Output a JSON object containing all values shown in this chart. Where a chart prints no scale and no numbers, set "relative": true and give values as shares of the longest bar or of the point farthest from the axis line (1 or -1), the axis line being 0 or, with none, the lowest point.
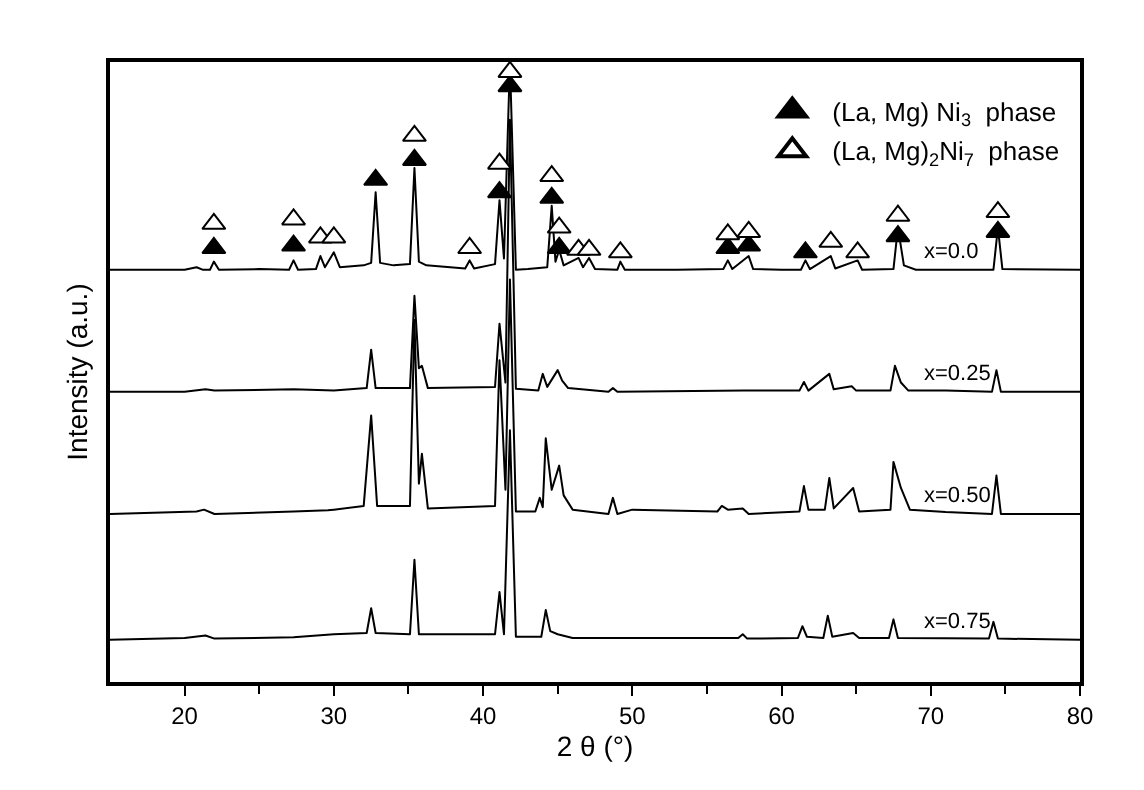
{
  "chart_data": {
    "type": "line",
    "relative": true,
    "xlabel": "2 θ (°)",
    "ylabel": "Intensity (a.u.)",
    "xlim": [
      15,
      80
    ],
    "xticks": [
      20,
      {
        "value": 25,
        "label": null
      },
      30,
      {
        "value": 35,
        "label": null
      },
      40,
      {
        "value": 45,
        "label": null
      },
      50,
      {
        "value": 55,
        "label": null
      },
      60,
      {
        "value": 65,
        "label": null
      },
      70,
      {
        "value": 75,
        "label": null
      },
      80
    ],
    "legend": "top right",
    "marker": "none",
    "line_style": "solid",
    "series": [
      {
        "name": "x=0.0",
        "color": "#000000",
        "x": [
          15,
          20,
          20.8,
          21.2,
          21.7,
          21.96,
          22.3,
          25,
          27.0,
          27.3,
          27.6,
          28.8,
          29.1,
          29.4,
          30.0,
          30.4,
          32.0,
          32.5,
          32.8,
          33.1,
          34.0,
          35.1,
          35.4,
          35.7,
          36.2,
          38.8,
          39.1,
          39.4,
          40.8,
          41.1,
          41.4,
          41.8,
          42.2,
          43,
          44.3,
          44.6,
          44.85,
          45.1,
          45.4,
          46.4,
          46.7,
          47.1,
          47.5,
          49.0,
          49.2,
          49.5,
          53,
          56.1,
          56.4,
          56.7,
          57.8,
          58.1,
          60,
          61.3,
          61.6,
          61.9,
          63.3,
          63.6,
          65.1,
          65.4,
          67.5,
          67.8,
          68.2,
          69,
          74.2,
          74.5,
          74.8,
          80
        ],
        "values": [
          0.665,
          0.665,
          0.669,
          0.665,
          0.665,
          0.678,
          0.665,
          0.666,
          0.665,
          0.68,
          0.665,
          0.666,
          0.687,
          0.669,
          0.693,
          0.669,
          0.672,
          0.676,
          0.79,
          0.676,
          0.672,
          0.674,
          0.829,
          0.678,
          0.672,
          0.667,
          0.68,
          0.667,
          0.674,
          0.777,
          0.683,
          1.0,
          0.665,
          0.666,
          0.669,
          0.768,
          0.678,
          0.697,
          0.672,
          0.684,
          0.669,
          0.684,
          0.666,
          0.665,
          0.678,
          0.665,
          0.665,
          0.666,
          0.68,
          0.666,
          0.687,
          0.666,
          0.665,
          0.665,
          0.68,
          0.666,
          0.687,
          0.667,
          0.68,
          0.665,
          0.666,
          0.733,
          0.672,
          0.665,
          0.665,
          0.733,
          0.666,
          0.665
        ]
      },
      {
        "name": "x=0.25",
        "color": "#000000",
        "x": [
          15,
          20,
          21.4,
          22,
          27.3,
          30,
          32.2,
          32.5,
          32.8,
          35.1,
          35.4,
          35.7,
          35.9,
          36.3,
          40.8,
          41.1,
          41.5,
          41.8,
          42.2,
          43.7,
          44.0,
          44.3,
          45.0,
          45.3,
          45.7,
          48.4,
          48.7,
          49.0,
          57.5,
          61.2,
          61.5,
          61.8,
          63.2,
          63.5,
          64.7,
          65.0,
          67.3,
          67.6,
          68.0,
          68.5,
          71,
          74.1,
          74.4,
          74.7,
          80
        ],
        "values": [
          0.468,
          0.468,
          0.472,
          0.47,
          0.472,
          0.47,
          0.474,
          0.536,
          0.474,
          0.474,
          0.623,
          0.506,
          0.51,
          0.474,
          0.476,
          0.578,
          0.483,
          0.907,
          0.473,
          0.47,
          0.497,
          0.476,
          0.503,
          0.486,
          0.474,
          0.468,
          0.474,
          0.468,
          0.47,
          0.47,
          0.484,
          0.47,
          0.497,
          0.472,
          0.477,
          0.47,
          0.47,
          0.51,
          0.483,
          0.47,
          0.47,
          0.468,
          0.503,
          0.468,
          0.468
        ]
      },
      {
        "name": "x=0.50",
        "color": "#000000",
        "x": [
          15,
          20.8,
          21.3,
          22,
          27.3,
          29.6,
          30,
          32.0,
          32.5,
          32.9,
          35.1,
          35.4,
          35.7,
          35.9,
          36.3,
          40.8,
          41.1,
          41.5,
          41.8,
          42.2,
          43.5,
          43.8,
          44.0,
          44.2,
          44.6,
          45.1,
          45.4,
          46,
          48.4,
          48.7,
          49,
          50,
          55.7,
          56.0,
          56.4,
          57.4,
          57.8,
          61.2,
          61.5,
          61.8,
          62.9,
          63.2,
          63.5,
          64.8,
          65.2,
          67.3,
          67.5,
          68.0,
          68.6,
          71,
          74.1,
          74.4,
          74.7,
          80
        ],
        "values": [
          0.271,
          0.275,
          0.278,
          0.271,
          0.275,
          0.277,
          0.278,
          0.284,
          0.43,
          0.284,
          0.284,
          0.584,
          0.32,
          0.368,
          0.28,
          0.284,
          0.519,
          0.31,
          0.649,
          0.275,
          0.275,
          0.297,
          0.282,
          0.393,
          0.31,
          0.349,
          0.301,
          0.278,
          0.271,
          0.297,
          0.271,
          0.278,
          0.275,
          0.284,
          0.278,
          0.28,
          0.271,
          0.275,
          0.316,
          0.278,
          0.278,
          0.329,
          0.28,
          0.313,
          0.275,
          0.278,
          0.355,
          0.313,
          0.278,
          0.274,
          0.271,
          0.333,
          0.271,
          0.271
        ]
      },
      {
        "name": "x=0.75",
        "color": "#000000",
        "x": [
          15,
          20,
          21.4,
          22,
          27.3,
          30,
          32.2,
          32.5,
          32.8,
          35.1,
          35.4,
          35.7,
          40.8,
          41.1,
          41.4,
          41.8,
          42.2,
          43.9,
          44.2,
          44.5,
          45.0,
          46,
          57.1,
          57.4,
          57.7,
          61.1,
          61.4,
          61.7,
          62.8,
          63.1,
          63.4,
          64.8,
          65.2,
          67.2,
          67.5,
          67.8,
          73.9,
          74.2,
          74.5,
          80
        ],
        "values": [
          0.068,
          0.071,
          0.075,
          0.07,
          0.072,
          0.077,
          0.079,
          0.119,
          0.079,
          0.077,
          0.197,
          0.077,
          0.077,
          0.145,
          0.077,
          0.406,
          0.073,
          0.073,
          0.116,
          0.082,
          0.077,
          0.071,
          0.071,
          0.077,
          0.07,
          0.071,
          0.09,
          0.073,
          0.071,
          0.107,
          0.073,
          0.079,
          0.071,
          0.071,
          0.101,
          0.071,
          0.07,
          0.097,
          0.07,
          0.068
        ]
      },
      {
        "name": "(La, Mg) Ni$_{3}$  phase",
        "type": "scatter",
        "marker": "triangle",
        "color": "#000000",
        "x": [
          21.96,
          27.3,
          32.8,
          35.4,
          41.1,
          41.8,
          44.6,
          45.1,
          56.4,
          57.8,
          61.6,
          67.8,
          74.5
        ],
        "values": [
          0.7,
          0.704,
          0.81,
          0.842,
          0.79,
          0.961,
          0.781,
          0.7,
          0.7,
          0.704,
          0.693,
          0.719,
          0.726
        ]
      },
      {
        "name": "(La, Mg)$_{2}$Ni$_{7}$  phase",
        "type": "scatter",
        "marker": "triangle",
        "color": "#ffffff",
        "x": [
          21.96,
          27.3,
          29.1,
          30.0,
          35.4,
          39.1,
          41.1,
          41.8,
          44.6,
          45.1,
          46.4,
          47.1,
          49.2,
          56.4,
          57.8,
          63.3,
          65.1,
          67.8,
          74.5
        ],
        "values": [
          0.739,
          0.746,
          0.717,
          0.717,
          0.881,
          0.7,
          0.836,
          0.984,
          0.816,
          0.733,
          0.697,
          0.697,
          0.693,
          0.722,
          0.726,
          0.71,
          0.693,
          0.752,
          0.758
        ]
      }
    ]
  }
}
